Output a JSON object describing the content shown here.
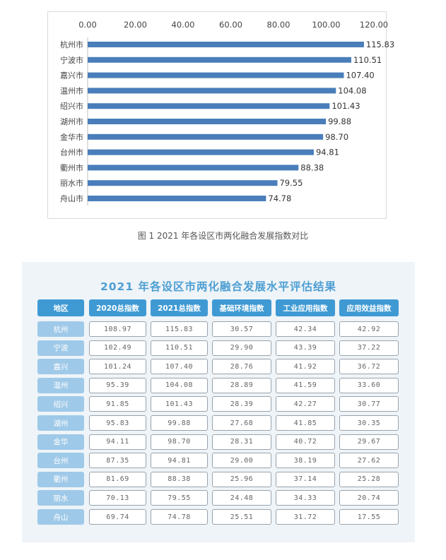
{
  "chart_data": {
    "type": "bar",
    "orientation": "horizontal",
    "categories": [
      "杭州市",
      "宁波市",
      "嘉兴市",
      "温州市",
      "绍兴市",
      "湖州市",
      "金华市",
      "台州市",
      "衢州市",
      "丽水市",
      "舟山市"
    ],
    "values": [
      115.83,
      110.51,
      107.4,
      104.08,
      101.43,
      99.88,
      98.7,
      94.81,
      88.38,
      79.55,
      74.78
    ],
    "value_labels": [
      "115.83",
      "110.51",
      "107.40",
      "104.08",
      "101.43",
      "99.88",
      "98.70",
      "94.81",
      "88.38",
      "79.55",
      "74.78"
    ],
    "xlim": [
      0,
      120
    ],
    "x_ticks": [
      "0.00",
      "20.00",
      "40.00",
      "60.00",
      "80.00",
      "100.00",
      "120.00"
    ],
    "x_axis_position": "top",
    "grid": false,
    "bar_color": "#4a7ebb"
  },
  "caption": "图 1  2021 年各设区市两化融合发展指数对比",
  "table": {
    "title": "2021 年各设区市两化融合发展水平评估结果",
    "headers": [
      "地区",
      "2020总指数",
      "2021总指数",
      "基础环境指数",
      "工业应用指数",
      "应用效益指数"
    ],
    "rows": [
      {
        "region": "杭州",
        "cells": [
          "108.97",
          "115.83",
          "30.57",
          "42.34",
          "42.92"
        ]
      },
      {
        "region": "宁波",
        "cells": [
          "102.49",
          "110.51",
          "29.90",
          "43.39",
          "37.22"
        ]
      },
      {
        "region": "嘉兴",
        "cells": [
          "101.24",
          "107.40",
          "28.76",
          "41.92",
          "36.72"
        ]
      },
      {
        "region": "温州",
        "cells": [
          "95.39",
          "104.08",
          "28.89",
          "41.59",
          "33.60"
        ]
      },
      {
        "region": "绍兴",
        "cells": [
          "91.85",
          "101.43",
          "28.39",
          "42.27",
          "30.77"
        ]
      },
      {
        "region": "湖州",
        "cells": [
          "95.83",
          "99.88",
          "27.68",
          "41.85",
          "30.35"
        ]
      },
      {
        "region": "金华",
        "cells": [
          "94.11",
          "98.70",
          "28.31",
          "40.72",
          "29.67"
        ]
      },
      {
        "region": "台州",
        "cells": [
          "87.35",
          "94.81",
          "29.00",
          "38.19",
          "27.62"
        ]
      },
      {
        "region": "衢州",
        "cells": [
          "81.69",
          "88.38",
          "25.96",
          "37.14",
          "25.28"
        ]
      },
      {
        "region": "丽水",
        "cells": [
          "70.13",
          "79.55",
          "24.48",
          "34.33",
          "20.74"
        ]
      },
      {
        "region": "舟山",
        "cells": [
          "69.74",
          "74.78",
          "25.51",
          "31.72",
          "17.55"
        ]
      }
    ],
    "colors": {
      "header": "#3f9ad4",
      "row_label": "#9fc9e8",
      "title": "#4d9ed2",
      "panel": "#eef4f8"
    }
  }
}
